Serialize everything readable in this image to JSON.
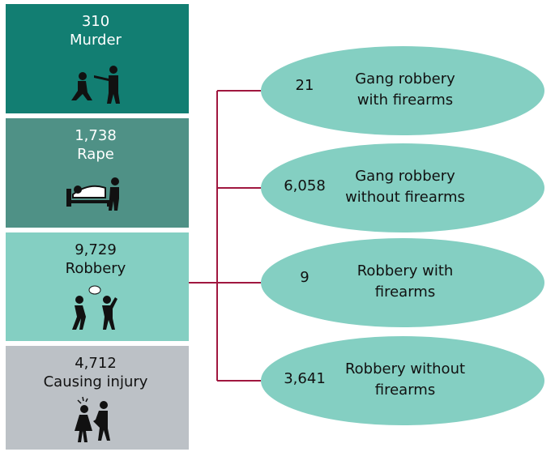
{
  "crimes": [
    {
      "number": "310",
      "label": "Murder",
      "color": "#127e72",
      "text_color": "#ffffff"
    },
    {
      "number": "1,738",
      "label": "Rape",
      "color": "#4f9186",
      "text_color": "#ffffff"
    },
    {
      "number": "9,729",
      "label": "Robbery",
      "color": "#84cfc2",
      "text_color": "#111111"
    },
    {
      "number": "4,712",
      "label": "Causing injury",
      "color": "#bcc1c6",
      "text_color": "#111111"
    }
  ],
  "robbery_breakdown": [
    {
      "number": "21",
      "label_lines": [
        "Gang robbery",
        "with firearms"
      ]
    },
    {
      "number": "6,058",
      "label_lines": [
        "Gang robbery",
        "without firearms"
      ]
    },
    {
      "number": "9",
      "label_lines": [
        "Robbery with",
        "firearms"
      ]
    },
    {
      "number": "3,641",
      "label_lines": [
        "Robbery without",
        "firearms"
      ]
    }
  ]
}
